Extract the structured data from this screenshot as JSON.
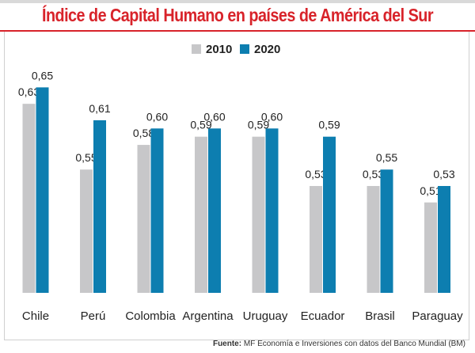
{
  "title": "Índice de Capital Humano en países de América del Sur",
  "source": {
    "label": "Fuente:",
    "text": "MF Economía e Inversiones con datos del Banco Mundial (BM)"
  },
  "colors": {
    "title": "#d8232a",
    "series_2010": "#c7c7c9",
    "series_2020": "#0d7eb0"
  },
  "chart_data": {
    "type": "bar",
    "title": "Índice de Capital Humano en países de América del Sur",
    "categories": [
      "Chile",
      "Perú",
      "Colombia",
      "Argentina",
      "Uruguay",
      "Ecuador",
      "Brasil",
      "Paraguay"
    ],
    "series": [
      {
        "name": "2010",
        "values": [
          0.63,
          0.55,
          0.58,
          0.59,
          0.59,
          0.53,
          0.53,
          0.51
        ],
        "labels": [
          "0,63",
          "0,55",
          "0,58",
          "0,59",
          "0,59",
          "0,53",
          "0,53",
          "0,51"
        ]
      },
      {
        "name": "2020",
        "values": [
          0.65,
          0.61,
          0.6,
          0.6,
          0.6,
          0.59,
          0.55,
          0.53
        ],
        "labels": [
          "0,65",
          "0,61",
          "0,60",
          "0,60",
          "0,60",
          "0,59",
          "0,55",
          "0,53"
        ]
      }
    ],
    "ylim": [
      0.4,
      0.66
    ],
    "grid": false,
    "legend": "top-center",
    "xlabel": "",
    "ylabel": ""
  }
}
